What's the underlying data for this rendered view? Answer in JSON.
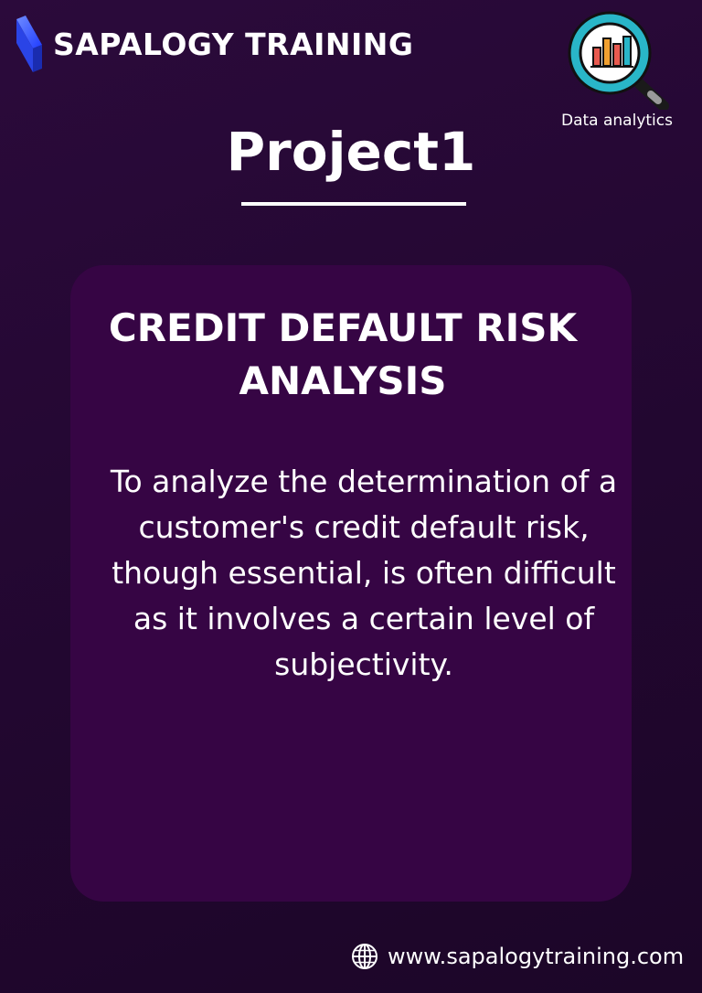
{
  "brand": {
    "name": "SAPALOGY TRAINING",
    "logo_icon": "brand-logo-icon",
    "accent_color": "#3b5cff"
  },
  "badge": {
    "icon": "magnifier-chart-icon",
    "label": "Data analytics",
    "ring_color": "#29b6c8"
  },
  "page": {
    "title": "Project1"
  },
  "card": {
    "heading": "CREDIT DEFAULT RISK ANALYSIS",
    "body": "To analyze the determination of a customer's credit default risk, though essential, is often difficult as it involves a certain level of subjectivity.",
    "background_color": "#360544"
  },
  "footer": {
    "icon": "globe-icon",
    "url": "www.sapalogytraining.com"
  },
  "colors": {
    "background": "#240732",
    "text": "#ffffff"
  }
}
